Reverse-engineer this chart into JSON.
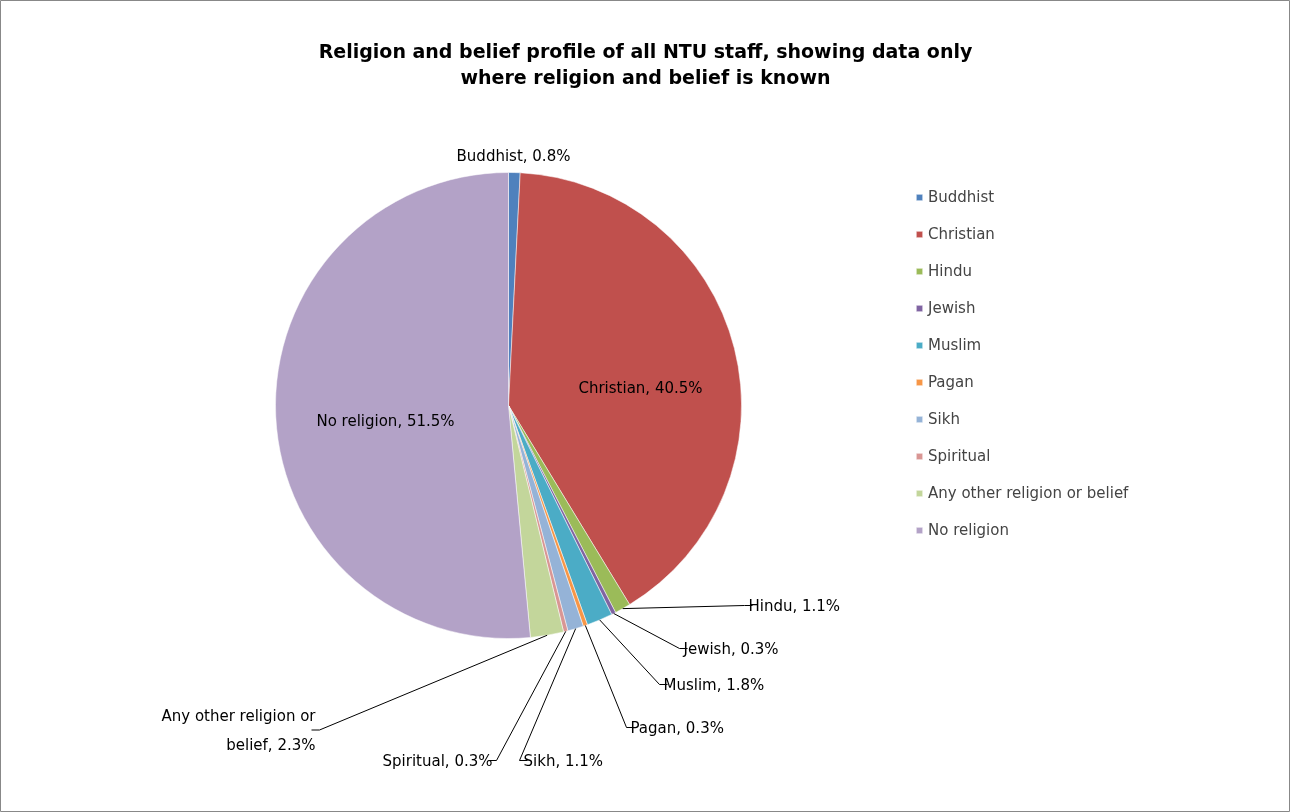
{
  "chart_data": {
    "type": "pie",
    "title": "Religion and belief profile of all NTU staff, showing data only where religion and belief is known",
    "categories": [
      "Buddhist",
      "Christian",
      "Hindu",
      "Jewish",
      "Muslim",
      "Pagan",
      "Sikh",
      "Spiritual",
      "Any other religion or belief",
      "No religion"
    ],
    "values": [
      0.8,
      40.5,
      1.1,
      0.3,
      1.8,
      0.3,
      1.1,
      0.3,
      2.3,
      51.5
    ],
    "colors": [
      "#4f81bd",
      "#c0504d",
      "#9bbb59",
      "#8064a2",
      "#4bacc6",
      "#f79646",
      "#95b3d7",
      "#d99694",
      "#c3d69b",
      "#b3a2c7"
    ],
    "value_labels": [
      "Buddhist, 0.8%",
      "Christian, 40.5%",
      "Hindu, 1.1%",
      "Jewish, 0.3%",
      "Muslim, 1.8%",
      "Pagan, 0.3%",
      "Sikh, 1.1%",
      "Spiritual, 0.3%",
      "Any other religion or belief, 2.3%",
      "No religion, 51.5%"
    ],
    "legend": "right"
  }
}
